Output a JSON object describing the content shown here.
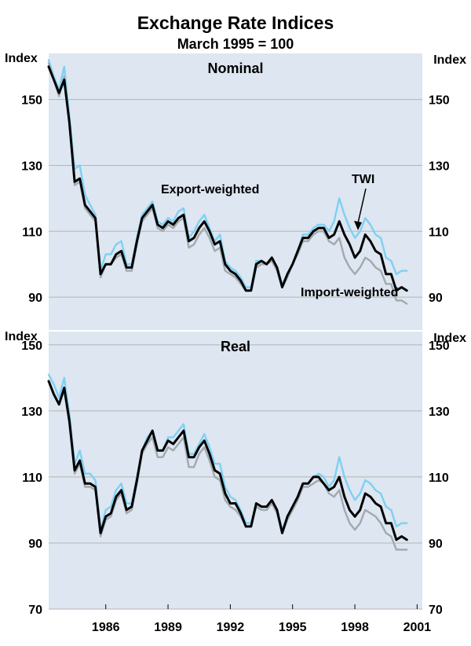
{
  "colors": {
    "background": "#ffffff",
    "panel": "#dde6f1",
    "grid": "#b5b5b5",
    "twi": "#000000",
    "export_weighted": "#7fd0f2",
    "import_weighted": "#a2a9ae"
  },
  "chart_data": {
    "type": "line",
    "title": "Exchange Rate Indices",
    "subtitle": "March 1995 = 100",
    "xlabel": "",
    "x_ticks": [
      "1986",
      "1989",
      "1992",
      "1995",
      "1998",
      "2001"
    ],
    "x_tick_values": [
      1986,
      1989,
      1992,
      1995,
      1998,
      2001
    ],
    "xlim": [
      1983.25,
      2001.25
    ],
    "annotations": [
      {
        "text": "Export-weighted",
        "target": "Export-weighted",
        "panel": "Nominal"
      },
      {
        "text": "TWI",
        "target": "TWI",
        "panel": "Nominal",
        "arrow": true
      },
      {
        "text": "Import-weighted",
        "target": "Import-weighted",
        "panel": "Nominal"
      }
    ],
    "panels": [
      {
        "name": "Nominal",
        "ylabel_left": "Index",
        "ylabel_right": "Index",
        "ylim": [
          80,
          164
        ],
        "y_ticks": [
          90,
          110,
          130,
          150
        ],
        "x_step": 0.25,
        "x_start": 1983.25,
        "series": [
          {
            "name": "TWI",
            "values": [
              160,
              156,
              152,
              156,
              143,
              125,
              126,
              118,
              116,
              114,
              97,
              100,
              100,
              103,
              104,
              99,
              99,
              107,
              114,
              116,
              118,
              112,
              111,
              113,
              112,
              114,
              115,
              107,
              108,
              111,
              113,
              110,
              106,
              107,
              100,
              98,
              97,
              95,
              92,
              92,
              100,
              101,
              100,
              102,
              99,
              93,
              97,
              100,
              104,
              108,
              108,
              110,
              111,
              111,
              108,
              109,
              113,
              109,
              106,
              102,
              104,
              109,
              107,
              104,
              103,
              97,
              97,
              92,
              93,
              92
            ]
          },
          {
            "name": "Export-weighted",
            "values": [
              162,
              157,
              153,
              160,
              145,
              129,
              130,
              121,
              118,
              115,
              98,
              103,
              103,
              106,
              107,
              100,
              100,
              108,
              115,
              117,
              119,
              113,
              112,
              114,
              113,
              116,
              117,
              108,
              110,
              113,
              115,
              111,
              107,
              109,
              101,
              99,
              98,
              96,
              93,
              93,
              101,
              101,
              100,
              102,
              99,
              94,
              97,
              100,
              104,
              109,
              109,
              111,
              112,
              112,
              110,
              113,
              120,
              115,
              111,
              108,
              110,
              114,
              112,
              109,
              108,
              102,
              101,
              97,
              98,
              98
            ]
          },
          {
            "name": "Import-weighted",
            "values": [
              161,
              156,
              151,
              157,
              143,
              124,
              125,
              117,
              115,
              113,
              96,
              100,
              100,
              102,
              103,
              98,
              98,
              106,
              113,
              115,
              117,
              111,
              110,
              112,
              111,
              113,
              114,
              105,
              106,
              109,
              111,
              108,
              104,
              105,
              98,
              97,
              96,
              94,
              92,
              92,
              99,
              100,
              100,
              101,
              98,
              93,
              96,
              100,
              103,
              107,
              107,
              109,
              110,
              110,
              107,
              106,
              108,
              102,
              99,
              97,
              99,
              102,
              101,
              99,
              98,
              94,
              94,
              89,
              89,
              88
            ]
          }
        ]
      },
      {
        "name": "Real",
        "ylabel_left": "Index",
        "ylabel_right": "Index",
        "ylim": [
          70,
          154
        ],
        "y_ticks": [
          70,
          90,
          110,
          130,
          150
        ],
        "x_step": 0.25,
        "x_start": 1983.25,
        "series": [
          {
            "name": "TWI",
            "values": [
              139,
              135,
              132,
              137,
              127,
              112,
              115,
              108,
              108,
              107,
              93,
              98,
              99,
              104,
              106,
              100,
              101,
              109,
              118,
              121,
              124,
              118,
              118,
              121,
              120,
              122,
              124,
              116,
              116,
              119,
              121,
              117,
              112,
              111,
              105,
              102,
              102,
              99,
              95,
              95,
              102,
              101,
              101,
              103,
              100,
              93,
              98,
              101,
              104,
              108,
              108,
              110,
              110,
              108,
              106,
              107,
              110,
              104,
              100,
              98,
              100,
              105,
              104,
              102,
              101,
              96,
              96,
              91,
              92,
              91
            ]
          },
          {
            "name": "Export-weighted",
            "values": [
              141,
              138,
              134,
              140,
              129,
              114,
              118,
              111,
              111,
              109,
              94,
              100,
              101,
              106,
              108,
              102,
              102,
              110,
              118,
              122,
              124,
              118,
              118,
              122,
              122,
              124,
              126,
              117,
              117,
              120,
              123,
              119,
              114,
              114,
              107,
              104,
              103,
              100,
              96,
              96,
              102,
              101,
              101,
              103,
              100,
              94,
              98,
              101,
              104,
              108,
              108,
              110,
              111,
              110,
              107,
              109,
              116,
              110,
              106,
              103,
              105,
              109,
              108,
              106,
              105,
              101,
              100,
              95,
              96,
              96
            ]
          },
          {
            "name": "Import-weighted",
            "values": [
              139,
              135,
              132,
              136,
              126,
              111,
              114,
              107,
              107,
              106,
              92,
              97,
              98,
              103,
              105,
              99,
              100,
              108,
              117,
              120,
              122,
              116,
              116,
              119,
              118,
              120,
              122,
              113,
              113,
              117,
              119,
              115,
              110,
              109,
              103,
              101,
              100,
              98,
              95,
              95,
              101,
              100,
              100,
              102,
              99,
              93,
              97,
              100,
              103,
              107,
              107,
              108,
              109,
              108,
              105,
              104,
              106,
              100,
              96,
              94,
              96,
              100,
              99,
              98,
              96,
              93,
              92,
              88,
              88,
              88
            ]
          }
        ]
      }
    ]
  }
}
